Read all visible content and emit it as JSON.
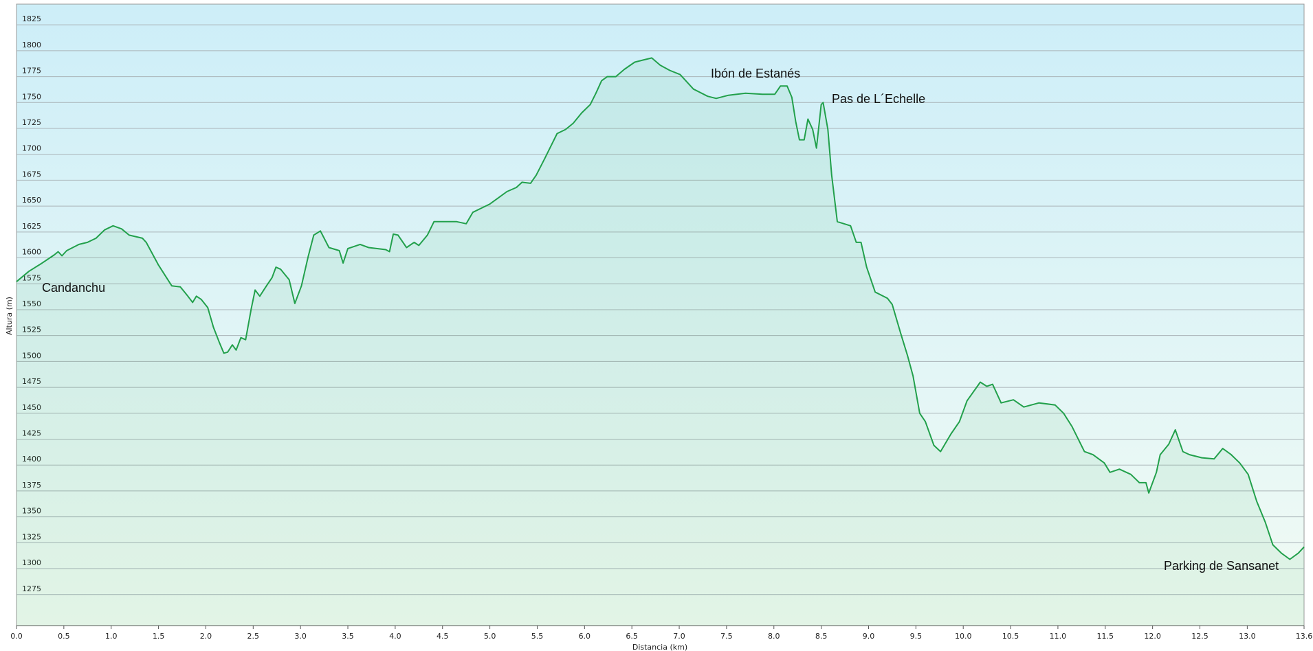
{
  "chart_data": {
    "type": "area",
    "x_label": "Distancia  (km)",
    "y_label": "Altura (m)",
    "annotations": [
      "Candanchu",
      "Ibón de Estanés",
      "Pas de L´Echelle",
      "Parking de Sansanet"
    ],
    "xlim": [
      0,
      13.6
    ],
    "ylim": [
      1245,
      1845
    ],
    "xticks": [
      {
        "value": 0,
        "label": "0.0"
      },
      0.5,
      {
        "value": 1,
        "label": "1.0"
      },
      1.5,
      {
        "value": 2,
        "label": "2.0"
      },
      2.5,
      {
        "value": 3,
        "label": "3.0"
      },
      3.5,
      {
        "value": 4,
        "label": "4.0"
      },
      4.5,
      {
        "value": 5,
        "label": "5.0"
      },
      5.5,
      {
        "value": 6,
        "label": "6.0"
      },
      6.5,
      {
        "value": 7,
        "label": "7.0"
      },
      7.5,
      {
        "value": 8,
        "label": "8.0"
      },
      8.5,
      {
        "value": 9,
        "label": "9.0"
      },
      9.5,
      {
        "value": 10,
        "label": "10.0"
      },
      10.5,
      {
        "value": 11,
        "label": "11.0"
      },
      11.5,
      {
        "value": 12,
        "label": "12.0"
      },
      12.5,
      {
        "value": 13,
        "label": "13.0"
      },
      13.6
    ],
    "yticks": [
      1275,
      1300,
      1325,
      1350,
      1375,
      1400,
      1425,
      1450,
      1475,
      1500,
      1525,
      1550,
      1575,
      1600,
      1625,
      1650,
      1675,
      1700,
      1725,
      1750,
      1775,
      1800,
      1825
    ],
    "grid": true,
    "x": [
      0,
      0.13,
      0.27,
      0.4,
      0.44,
      0.48,
      0.53,
      0.66,
      0.75,
      0.84,
      0.93,
      1.02,
      1.11,
      1.19,
      1.33,
      1.37,
      1.5,
      1.64,
      1.73,
      1.81,
      1.86,
      1.9,
      1.95,
      2.02,
      2.08,
      2.14,
      2.19,
      2.23,
      2.28,
      2.32,
      2.37,
      2.42,
      2.48,
      2.52,
      2.57,
      2.64,
      2.7,
      2.74,
      2.79,
      2.88,
      2.94,
      3.01,
      3.08,
      3.14,
      3.21,
      3.3,
      3.41,
      3.45,
      3.5,
      3.63,
      3.72,
      3.9,
      3.94,
      3.98,
      4.03,
      4.12,
      4.2,
      4.25,
      4.34,
      4.41,
      4.51,
      4.65,
      4.75,
      4.82,
      4.91,
      5.0,
      5.09,
      5.18,
      5.28,
      5.34,
      5.43,
      5.49,
      5.58,
      5.71,
      5.8,
      5.88,
      5.97,
      6.06,
      6.12,
      6.18,
      6.24,
      6.33,
      6.42,
      6.53,
      6.62,
      6.71,
      6.8,
      6.9,
      7.01,
      7.15,
      7.3,
      7.39,
      7.52,
      7.7,
      7.88,
      8.01,
      8.07,
      8.14,
      8.19,
      8.23,
      8.27,
      8.32,
      8.36,
      8.41,
      8.45,
      8.5,
      8.52,
      8.57,
      8.61,
      8.67,
      8.81,
      8.87,
      8.92,
      8.98,
      9.07,
      9.2,
      9.25,
      9.34,
      9.41,
      9.47,
      9.54,
      9.6,
      9.69,
      9.76,
      9.87,
      9.96,
      10.04,
      10.18,
      10.25,
      10.31,
      10.4,
      10.53,
      10.64,
      10.8,
      10.97,
      11.06,
      11.15,
      11.28,
      11.37,
      11.49,
      11.55,
      11.65,
      11.77,
      11.86,
      11.93,
      11.96,
      12.04,
      12.08,
      12.17,
      12.24,
      12.32,
      12.39,
      12.52,
      12.65,
      12.74,
      12.83,
      12.92,
      13.01,
      13.1,
      13.19,
      13.27,
      13.36,
      13.45,
      13.54,
      13.6
    ],
    "series": [
      {
        "color": "#22a04b",
        "values": [
          1577,
          1587,
          1595,
          1603,
          1606,
          1602,
          1607,
          1613,
          1615,
          1619,
          1627,
          1631,
          1628,
          1622,
          1619,
          1615,
          1593,
          1573,
          1572,
          1563,
          1557,
          1563,
          1560,
          1552,
          1533,
          1519,
          1508,
          1509,
          1516,
          1511,
          1523,
          1521,
          1551,
          1569,
          1563,
          1573,
          1581,
          1591,
          1589,
          1579,
          1556,
          1573,
          1601,
          1622,
          1626,
          1610,
          1607,
          1595,
          1609,
          1613,
          1610,
          1608,
          1606,
          1623,
          1622,
          1610,
          1615,
          1612,
          1622,
          1635,
          1635,
          1635,
          1633,
          1644,
          1648,
          1652,
          1658,
          1664,
          1668,
          1673,
          1672,
          1680,
          1696,
          1720,
          1724,
          1730,
          1740,
          1748,
          1759,
          1771,
          1775,
          1775,
          1782,
          1789,
          1791,
          1793,
          1786,
          1781,
          1777,
          1763,
          1756,
          1754,
          1757,
          1759,
          1758,
          1758,
          1766,
          1766,
          1755,
          1732,
          1714,
          1714,
          1734,
          1724,
          1706,
          1748,
          1750,
          1724,
          1680,
          1635,
          1631,
          1615,
          1615,
          1591,
          1567,
          1561,
          1555,
          1527,
          1506,
          1486,
          1450,
          1442,
          1419,
          1413,
          1430,
          1442,
          1462,
          1480,
          1476,
          1478,
          1460,
          1463,
          1456,
          1460,
          1458,
          1450,
          1437,
          1413,
          1410,
          1402,
          1393,
          1396,
          1391,
          1383,
          1383,
          1373,
          1393,
          1410,
          1420,
          1434,
          1413,
          1410,
          1407,
          1406,
          1416,
          1410,
          1402,
          1391,
          1365,
          1345,
          1323,
          1315,
          1309,
          1315,
          1321
        ]
      }
    ]
  }
}
